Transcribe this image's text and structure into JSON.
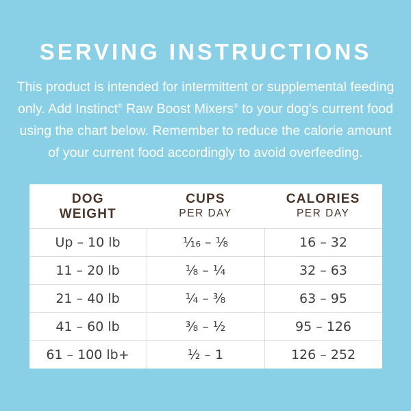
{
  "page": {
    "background_color": "#89d0e7",
    "text_color": "#ffffff",
    "header_text_color": "#4a352b",
    "table_text_color": "#3e3e3e"
  },
  "title": "SERVING INSTRUCTIONS",
  "intro": {
    "line1": "This product is intended for intermittent or supplemental feeding",
    "line2_pre": "only. Add Instinct",
    "reg1": "®",
    "line2_mid": " Raw Boost Mixers",
    "reg2": "®",
    "line2_post": " to your dog’s current food",
    "line3": "using the chart below. Remember to reduce the calorie amount",
    "line4": "of your current food accordingly to avoid overfeeding."
  },
  "table": {
    "columns": [
      {
        "label_line1": "DOG",
        "label_line2": "WEIGHT"
      },
      {
        "label": "CUPS",
        "sublabel": "PER DAY"
      },
      {
        "label": "CALORIES",
        "sublabel": "PER DAY"
      }
    ],
    "rows": [
      {
        "weight": "Up – 10 lb",
        "cups": "¹⁄₁₆ – ¹⁄₈",
        "calories": "16 – 32"
      },
      {
        "weight": "11 – 20 lb",
        "cups": "¹⁄₈ – ¹⁄₄",
        "calories": "32 – 63"
      },
      {
        "weight": "21 – 40 lb",
        "cups": "¹⁄₄ – ³⁄₈",
        "calories": "63 – 95"
      },
      {
        "weight": "41 – 60 lb",
        "cups": "³⁄₈ – ¹⁄₂",
        "calories": "95 – 126"
      },
      {
        "weight": "61 – 100 lb+",
        "cups": "¹⁄₂ – 1",
        "calories": "126 – 252"
      }
    ]
  },
  "chart_data": {
    "type": "table",
    "title": "SERVING INSTRUCTIONS",
    "columns": [
      "DOG WEIGHT",
      "CUPS PER DAY",
      "CALORIES PER DAY"
    ],
    "rows": [
      [
        "Up – 10 lb",
        "1/16 – 1/8",
        "16 – 32"
      ],
      [
        "11 – 20 lb",
        "1/8 – 1/4",
        "32 – 63"
      ],
      [
        "21 – 40 lb",
        "1/4 – 3/8",
        "63 – 95"
      ],
      [
        "41 – 60 lb",
        "3/8 – 1/2",
        "95 – 126"
      ],
      [
        "61 – 100 lb+",
        "1/2 – 1",
        "126 – 252"
      ]
    ]
  }
}
